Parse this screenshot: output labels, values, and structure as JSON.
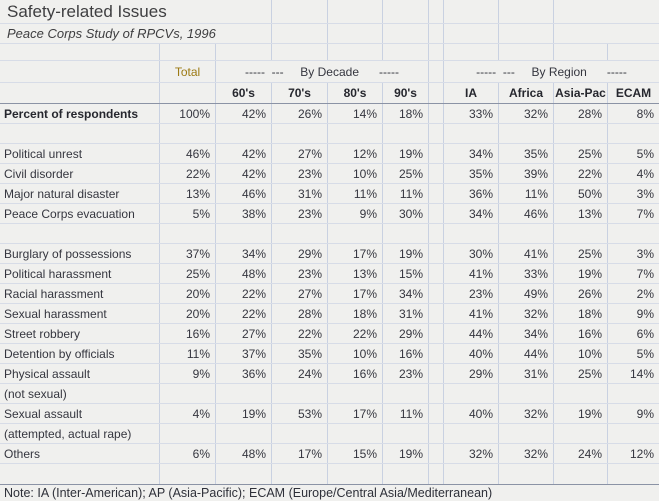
{
  "title": "Safety-related Issues",
  "subtitle": "Peace Corps Study of RPCVs, 1996",
  "note": "Note: IA (Inter-American); AP (Asia-Pacific); ECAM (Europe/Central Asia/Mediterranean)",
  "colors": {
    "background": "#f0f0ee",
    "gridline_vertical": "#c9d1e1",
    "gridline_horizontal": "#d7dce7",
    "section_border": "#8b93a5",
    "text": "#35363f",
    "total_header": "#9c7a14",
    "title_text": "#3e3e40"
  },
  "table": {
    "total_label": "Total",
    "decade_group_label": "-----  ---     By Decade      -----",
    "region_group_label": "-----  ---     By Region      -----",
    "decade_columns": [
      "60's",
      "70's",
      "80's",
      "90's"
    ],
    "region_columns": [
      "IA",
      "Africa",
      "Asia-Pac",
      "ECAM"
    ],
    "column_keys": [
      "total",
      "60s",
      "70s",
      "80s",
      "90s",
      "ia",
      "africa",
      "asia-pac",
      "ecam"
    ],
    "rows": [
      {
        "label": "Percent of respondents",
        "bold": true,
        "values": [
          "100%",
          "42%",
          "26%",
          "14%",
          "18%",
          "33%",
          "32%",
          "28%",
          "8%"
        ]
      },
      {
        "label": "",
        "values": []
      },
      {
        "label": "Political unrest",
        "values": [
          "46%",
          "42%",
          "27%",
          "12%",
          "19%",
          "34%",
          "35%",
          "25%",
          "5%"
        ]
      },
      {
        "label": "Civil disorder",
        "values": [
          "22%",
          "42%",
          "23%",
          "10%",
          "25%",
          "35%",
          "39%",
          "22%",
          "4%"
        ]
      },
      {
        "label": "Major natural disaster",
        "values": [
          "13%",
          "46%",
          "31%",
          "11%",
          "11%",
          "36%",
          "11%",
          "50%",
          "3%"
        ]
      },
      {
        "label": "Peace Corps evacuation",
        "values": [
          "5%",
          "38%",
          "23%",
          "9%",
          "30%",
          "34%",
          "46%",
          "13%",
          "7%"
        ]
      },
      {
        "label": "",
        "values": []
      },
      {
        "label": "Burglary of possessions",
        "values": [
          "37%",
          "34%",
          "29%",
          "17%",
          "19%",
          "30%",
          "41%",
          "25%",
          "3%"
        ]
      },
      {
        "label": "Political harassment",
        "values": [
          "25%",
          "48%",
          "23%",
          "13%",
          "15%",
          "41%",
          "33%",
          "19%",
          "7%"
        ]
      },
      {
        "label": "Racial harassment",
        "values": [
          "20%",
          "22%",
          "27%",
          "17%",
          "34%",
          "23%",
          "49%",
          "26%",
          "2%"
        ]
      },
      {
        "label": "Sexual harassment",
        "values": [
          "20%",
          "22%",
          "28%",
          "18%",
          "31%",
          "41%",
          "32%",
          "18%",
          "9%"
        ]
      },
      {
        "label": "Street robbery",
        "values": [
          "16%",
          "27%",
          "22%",
          "22%",
          "29%",
          "44%",
          "34%",
          "16%",
          "6%"
        ]
      },
      {
        "label": "Detention by officials",
        "values": [
          "11%",
          "37%",
          "35%",
          "10%",
          "16%",
          "40%",
          "44%",
          "10%",
          "5%"
        ]
      },
      {
        "label": "Physical assault",
        "values": [
          "9%",
          "36%",
          "24%",
          "16%",
          "23%",
          "29%",
          "31%",
          "25%",
          "14%"
        ]
      },
      {
        "label": " (not sexual)",
        "values": []
      },
      {
        "label": "Sexual assault",
        "values": [
          "4%",
          "19%",
          "53%",
          "17%",
          "11%",
          "40%",
          "32%",
          "19%",
          "9%"
        ]
      },
      {
        "label": " (attempted, actual rape)",
        "values": []
      },
      {
        "label": "Others",
        "values": [
          "6%",
          "48%",
          "17%",
          "15%",
          "19%",
          "32%",
          "32%",
          "24%",
          "12%"
        ]
      },
      {
        "label": "",
        "values": []
      }
    ]
  }
}
